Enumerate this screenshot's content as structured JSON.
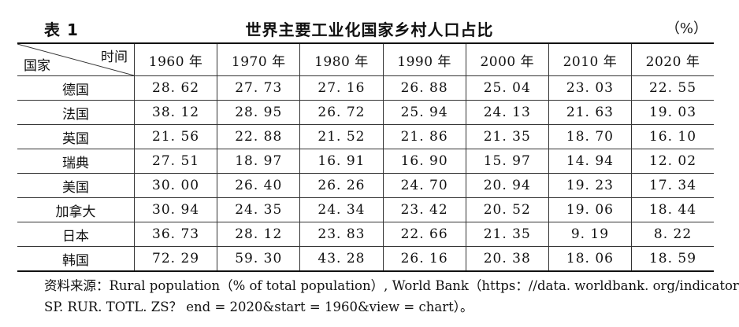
{
  "table_label": "表 1",
  "title": "世界主要工业化国家乡村人口占比",
  "unit": "（%）",
  "corner": {
    "top": "时间",
    "bottom": "国家"
  },
  "years": [
    "1960 年",
    "1970 年",
    "1980 年",
    "1990 年",
    "2000 年",
    "2010 年",
    "2020 年"
  ],
  "rows": [
    {
      "country": "德国",
      "values": [
        "28. 62",
        "27. 73",
        "27. 16",
        "26. 88",
        "25. 04",
        "23. 03",
        "22. 55"
      ]
    },
    {
      "country": "法国",
      "values": [
        "38. 12",
        "28. 95",
        "26. 72",
        "25. 94",
        "24. 13",
        "21. 63",
        "19. 03"
      ]
    },
    {
      "country": "英国",
      "values": [
        "21. 56",
        "22. 88",
        "21. 52",
        "21. 86",
        "21. 35",
        "18. 70",
        "16. 10"
      ]
    },
    {
      "country": "瑞典",
      "values": [
        "27. 51",
        "18. 97",
        "16. 91",
        "16. 90",
        "15. 97",
        "14. 94",
        "12. 02"
      ]
    },
    {
      "country": "美国",
      "values": [
        "30. 00",
        "26. 40",
        "26. 26",
        "24. 70",
        "20. 94",
        "19. 23",
        "17. 34"
      ]
    },
    {
      "country": "加拿大",
      "values": [
        "30. 94",
        "24. 35",
        "24. 34",
        "23. 42",
        "20. 52",
        "19. 06",
        "18. 44"
      ]
    },
    {
      "country": "日本",
      "values": [
        "36. 73",
        "28. 12",
        "23. 83",
        "22. 66",
        "21. 35",
        "9. 19",
        "8. 22"
      ]
    },
    {
      "country": "韩国",
      "values": [
        "72. 29",
        "59. 30",
        "43. 28",
        "26. 16",
        "20. 38",
        "18. 06",
        "18. 59"
      ]
    }
  ],
  "source": {
    "line1": "资料来源：Rural population（% of total population）, World Bank（https：//data. worldbank. org/indicator/",
    "line2": "SP. RUR. TOTL. ZS？ end = 2020&start = 1960&view = chart）。"
  }
}
